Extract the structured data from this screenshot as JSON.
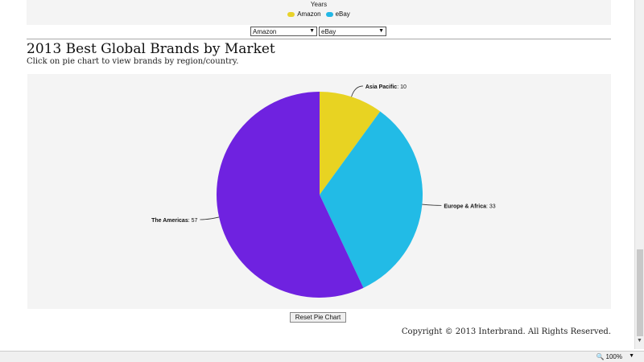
{
  "top_legend": {
    "title": "Years",
    "items": [
      {
        "label": "Amazon",
        "color": "#e8d22a"
      },
      {
        "label": "eBay",
        "color": "#22b8e6"
      }
    ]
  },
  "selects": {
    "first": {
      "value": "Amazon"
    },
    "second": {
      "value": "eBay"
    }
  },
  "page": {
    "title": "2013 Best Global Brands by Market",
    "subtitle": "Click on pie chart to view brands by region/country."
  },
  "chart_data": {
    "type": "pie",
    "title": "",
    "slices": [
      {
        "label": "Asia Pacific",
        "value": 10,
        "color": "#e8d322"
      },
      {
        "label": "Europe & Africa",
        "value": 33,
        "color": "#22bbe6"
      },
      {
        "label": "The Americas",
        "value": 57,
        "color": "#6f22e0"
      }
    ]
  },
  "buttons": {
    "reset": "Reset Pie Chart"
  },
  "footer": {
    "copyright": "Copyright © 2013 Interbrand. All Rights Reserved."
  },
  "statusbar": {
    "zoom": "100%"
  }
}
